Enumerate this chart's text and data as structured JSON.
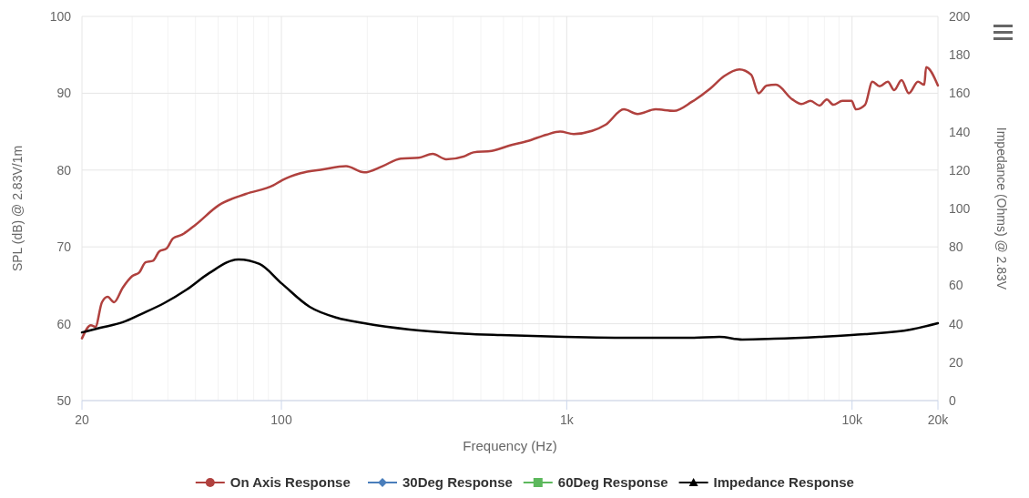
{
  "chart_data": {
    "type": "line",
    "xlabel": "Frequency (Hz)",
    "ylabel": "SPL (dB) @ 2.83V/1m",
    "y2label": "Impedance (Ohms) @ 2.83V",
    "log": "x",
    "xlim": [
      20,
      20000
    ],
    "xticks": [
      20,
      {
        "value": 30,
        "label": null
      },
      {
        "value": 40,
        "label": null
      },
      {
        "value": 50,
        "label": null
      },
      {
        "value": 60,
        "label": null
      },
      {
        "value": 70,
        "label": null
      },
      {
        "value": 80,
        "label": null
      },
      {
        "value": 90,
        "label": null
      },
      100,
      {
        "value": 200,
        "label": null
      },
      {
        "value": 300,
        "label": null
      },
      {
        "value": 400,
        "label": null
      },
      {
        "value": 500,
        "label": null
      },
      {
        "value": 600,
        "label": null
      },
      {
        "value": 700,
        "label": null
      },
      {
        "value": 800,
        "label": null
      },
      {
        "value": 900,
        "label": null
      },
      {
        "value": 1000,
        "label": "1k"
      },
      {
        "value": 2000,
        "label": null
      },
      {
        "value": 3000,
        "label": null
      },
      {
        "value": 4000,
        "label": null
      },
      {
        "value": 5000,
        "label": null
      },
      {
        "value": 6000,
        "label": null
      },
      {
        "value": 7000,
        "label": null
      },
      {
        "value": 8000,
        "label": null
      },
      {
        "value": 9000,
        "label": null
      },
      {
        "value": 10000,
        "label": "10k"
      },
      {
        "value": 20000,
        "label": "20k"
      }
    ],
    "ylim": [
      50,
      100
    ],
    "yticks": [
      50,
      60,
      70,
      80,
      90,
      100
    ],
    "y2lim": [
      0,
      200
    ],
    "y2ticks": [
      0,
      20,
      40,
      60,
      80,
      100,
      120,
      140,
      160,
      180,
      200
    ],
    "grid": true,
    "legend": "bottom",
    "series": [
      {
        "name": "On Axis Response",
        "color": "#b0413e",
        "x": [
          20,
          21.5,
          22.3,
          23.5,
          24.6,
          25.9,
          27.8,
          30,
          31.8,
          33.4,
          35.5,
          37.3,
          39.6,
          41.7,
          44.9,
          50.1,
          60.2,
          75.1,
          93.6,
          100.7,
          116.7,
          140.2,
          168.5,
          195,
          226,
          262,
          303,
          339,
          378,
          438,
          471,
          546,
          632,
          733,
          849,
          948,
          1058,
          1226,
          1369,
          1585,
          1770,
          2050,
          2375,
          2750,
          3186,
          3557,
          4030,
          4433,
          4701,
          5024,
          5408,
          6172,
          6643,
          7148,
          7695,
          8157,
          8593,
          9250,
          9955,
          10324,
          11110,
          11783,
          12493,
          13347,
          14050,
          14909,
          15810,
          17020,
          17915,
          18180,
          20000
        ],
        "values": [
          58.1,
          59.8,
          59.6,
          62.8,
          63.5,
          62.8,
          64.7,
          66.2,
          66.7,
          68,
          68.2,
          69.4,
          69.8,
          71.1,
          71.6,
          72.9,
          75.4,
          76.9,
          78,
          78.7,
          79.6,
          80.1,
          80.5,
          79.7,
          80.5,
          81.5,
          81.6,
          82.1,
          81.4,
          81.8,
          82.3,
          82.5,
          83.2,
          83.8,
          84.6,
          85,
          84.7,
          85.1,
          85.9,
          87.9,
          87.3,
          87.9,
          87.7,
          88.9,
          90.6,
          92.2,
          93.1,
          92.4,
          90,
          91,
          91.1,
          89.2,
          88.6,
          89,
          88.4,
          89.2,
          88.5,
          89,
          89,
          87.9,
          88.5,
          91.5,
          90.9,
          91.5,
          90.4,
          91.7,
          90,
          91.5,
          91.1,
          93.4,
          91
        ]
      },
      {
        "name": "30Deg Response",
        "color": "#4a7ebb"
      },
      {
        "name": "60Deg Response",
        "color": "#5cb85c"
      },
      {
        "name": "Impedance Response",
        "color": "#000000",
        "axis": "y2",
        "x": [
          20,
          23.2,
          27.8,
          32.2,
          38.8,
          46.6,
          55.9,
          70.8,
          83.8,
          100.7,
          125.6,
          156.5,
          195,
          282,
          407,
          587,
          983,
          1770,
          2750,
          3429,
          4120,
          5330,
          7695,
          11110,
          16050,
          20000
        ],
        "values": [
          35.5,
          37.9,
          40.8,
          45,
          50.7,
          57.8,
          66.4,
          73.5,
          71.1,
          60.7,
          48.8,
          43.1,
          40.3,
          37,
          35.1,
          34.1,
          33.2,
          32.7,
          32.7,
          33.2,
          31.8,
          32.2,
          33.2,
          34.6,
          37,
          40.3
        ]
      }
    ]
  }
}
